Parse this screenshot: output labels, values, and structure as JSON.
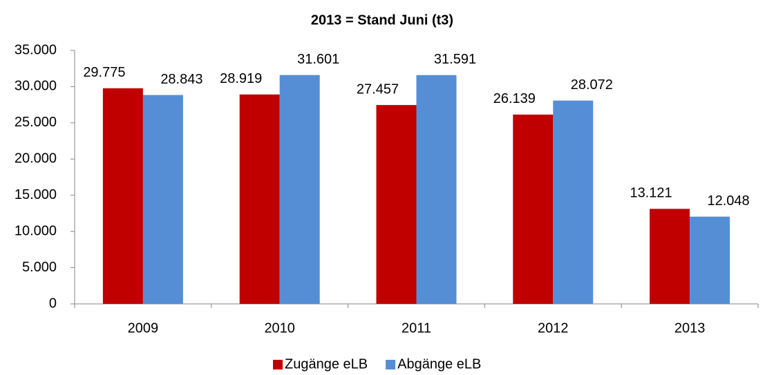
{
  "chart_data": {
    "type": "bar",
    "title": "2013 = Stand Juni (t3)",
    "categories": [
      "2009",
      "2010",
      "2011",
      "2012",
      "2013"
    ],
    "series": [
      {
        "name": "Zugänge eLB",
        "color": "#c00000",
        "values": [
          29775,
          28919,
          27457,
          26139,
          13121
        ],
        "value_labels": [
          "29.775",
          "28.919",
          "27.457",
          "26.139",
          "13.121"
        ]
      },
      {
        "name": "Abgänge eLB",
        "color": "#558ed5",
        "values": [
          28843,
          31601,
          31591,
          28072,
          12048
        ],
        "value_labels": [
          "28.843",
          "31.601",
          "31.591",
          "28.072",
          "12.048"
        ]
      }
    ],
    "ylim": [
      0,
      35000
    ],
    "yticks": [
      0,
      {
        "value": 5000,
        "label": "5.000"
      },
      {
        "value": 10000,
        "label": "10.000"
      },
      {
        "value": 15000,
        "label": "15.000"
      },
      {
        "value": 20000,
        "label": "20.000"
      },
      {
        "value": 25000,
        "label": "25.000"
      },
      {
        "value": 30000,
        "label": "30.000"
      },
      {
        "value": 35000,
        "label": "35.000"
      }
    ],
    "grid": false,
    "legend": "bottom"
  }
}
